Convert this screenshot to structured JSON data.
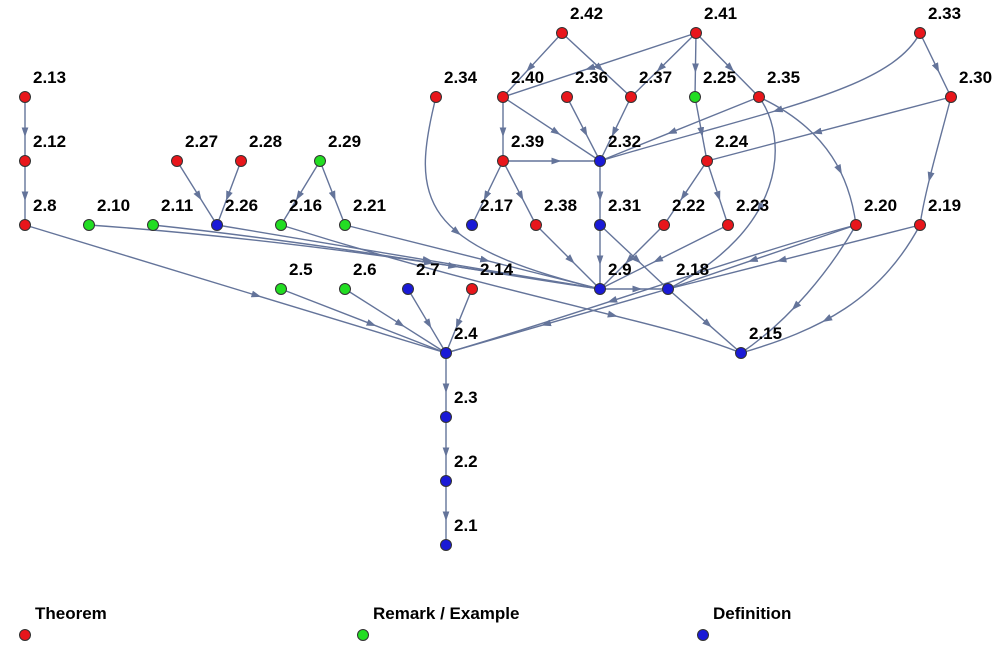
{
  "colors": {
    "theorem": "#e8161b",
    "remark": "#22dd22",
    "definition": "#1a1ad6",
    "edge": "#64749a",
    "node_stroke": "#333333"
  },
  "legend": [
    {
      "label": "Theorem",
      "kind": "theorem"
    },
    {
      "label": "Remark / Example",
      "kind": "remark"
    },
    {
      "label": "Definition",
      "kind": "definition"
    }
  ],
  "nodes": [
    {
      "id": "2.1",
      "kind": "definition"
    },
    {
      "id": "2.2",
      "kind": "definition"
    },
    {
      "id": "2.3",
      "kind": "definition"
    },
    {
      "id": "2.4",
      "kind": "definition"
    },
    {
      "id": "2.5",
      "kind": "remark"
    },
    {
      "id": "2.6",
      "kind": "remark"
    },
    {
      "id": "2.7",
      "kind": "definition"
    },
    {
      "id": "2.8",
      "kind": "theorem"
    },
    {
      "id": "2.9",
      "kind": "definition"
    },
    {
      "id": "2.10",
      "kind": "remark"
    },
    {
      "id": "2.11",
      "kind": "remark"
    },
    {
      "id": "2.12",
      "kind": "theorem"
    },
    {
      "id": "2.13",
      "kind": "theorem"
    },
    {
      "id": "2.14",
      "kind": "theorem"
    },
    {
      "id": "2.15",
      "kind": "definition"
    },
    {
      "id": "2.16",
      "kind": "remark"
    },
    {
      "id": "2.17",
      "kind": "definition"
    },
    {
      "id": "2.18",
      "kind": "definition"
    },
    {
      "id": "2.19",
      "kind": "theorem"
    },
    {
      "id": "2.20",
      "kind": "theorem"
    },
    {
      "id": "2.21",
      "kind": "remark"
    },
    {
      "id": "2.22",
      "kind": "theorem"
    },
    {
      "id": "2.23",
      "kind": "theorem"
    },
    {
      "id": "2.24",
      "kind": "theorem"
    },
    {
      "id": "2.25",
      "kind": "remark"
    },
    {
      "id": "2.26",
      "kind": "definition"
    },
    {
      "id": "2.27",
      "kind": "theorem"
    },
    {
      "id": "2.28",
      "kind": "theorem"
    },
    {
      "id": "2.29",
      "kind": "remark"
    },
    {
      "id": "2.30",
      "kind": "theorem"
    },
    {
      "id": "2.31",
      "kind": "definition"
    },
    {
      "id": "2.32",
      "kind": "definition"
    },
    {
      "id": "2.33",
      "kind": "theorem"
    },
    {
      "id": "2.34",
      "kind": "theorem"
    },
    {
      "id": "2.35",
      "kind": "theorem"
    },
    {
      "id": "2.36",
      "kind": "theorem"
    },
    {
      "id": "2.37",
      "kind": "theorem"
    },
    {
      "id": "2.38",
      "kind": "theorem"
    },
    {
      "id": "2.39",
      "kind": "theorem"
    },
    {
      "id": "2.40",
      "kind": "theorem"
    },
    {
      "id": "2.41",
      "kind": "theorem"
    },
    {
      "id": "2.42",
      "kind": "theorem"
    }
  ],
  "edges": [
    [
      "2.13",
      "2.12"
    ],
    [
      "2.12",
      "2.8"
    ],
    [
      "2.8",
      "2.4"
    ],
    [
      "2.27",
      "2.26"
    ],
    [
      "2.28",
      "2.26"
    ],
    [
      "2.29",
      "2.16"
    ],
    [
      "2.29",
      "2.21"
    ],
    [
      "2.10",
      "2.9"
    ],
    [
      "2.11",
      "2.9"
    ],
    [
      "2.26",
      "2.9"
    ],
    [
      "2.16",
      "2.15"
    ],
    [
      "2.21",
      "2.9"
    ],
    [
      "2.5",
      "2.4"
    ],
    [
      "2.6",
      "2.4"
    ],
    [
      "2.7",
      "2.4"
    ],
    [
      "2.14",
      "2.4"
    ],
    [
      "2.4",
      "2.3"
    ],
    [
      "2.3",
      "2.2"
    ],
    [
      "2.2",
      "2.1"
    ],
    [
      "2.42",
      "2.40"
    ],
    [
      "2.42",
      "2.37"
    ],
    [
      "2.41",
      "2.40"
    ],
    [
      "2.41",
      "2.37"
    ],
    [
      "2.41",
      "2.35"
    ],
    [
      "2.41",
      "2.25"
    ],
    [
      "2.34",
      "2.9"
    ],
    [
      "2.40",
      "2.39"
    ],
    [
      "2.40",
      "2.32"
    ],
    [
      "2.36",
      "2.32"
    ],
    [
      "2.37",
      "2.32"
    ],
    [
      "2.25",
      "2.24"
    ],
    [
      "2.35",
      "2.32"
    ],
    [
      "2.35",
      "2.18"
    ],
    [
      "2.35",
      "2.20"
    ],
    [
      "2.33",
      "2.32"
    ],
    [
      "2.33",
      "2.30"
    ],
    [
      "2.30",
      "2.24"
    ],
    [
      "2.30",
      "2.19"
    ],
    [
      "2.39",
      "2.17"
    ],
    [
      "2.39",
      "2.38"
    ],
    [
      "2.39",
      "2.32"
    ],
    [
      "2.38",
      "2.9"
    ],
    [
      "2.32",
      "2.31"
    ],
    [
      "2.31",
      "2.9"
    ],
    [
      "2.31",
      "2.18"
    ],
    [
      "2.24",
      "2.22"
    ],
    [
      "2.24",
      "2.23"
    ],
    [
      "2.22",
      "2.9"
    ],
    [
      "2.23",
      "2.9"
    ],
    [
      "2.20",
      "2.4"
    ],
    [
      "2.20",
      "2.18"
    ],
    [
      "2.20",
      "2.15"
    ],
    [
      "2.19",
      "2.18"
    ],
    [
      "2.19",
      "2.15"
    ],
    [
      "2.9",
      "2.18"
    ],
    [
      "2.18",
      "2.4"
    ],
    [
      "2.18",
      "2.15"
    ]
  ]
}
